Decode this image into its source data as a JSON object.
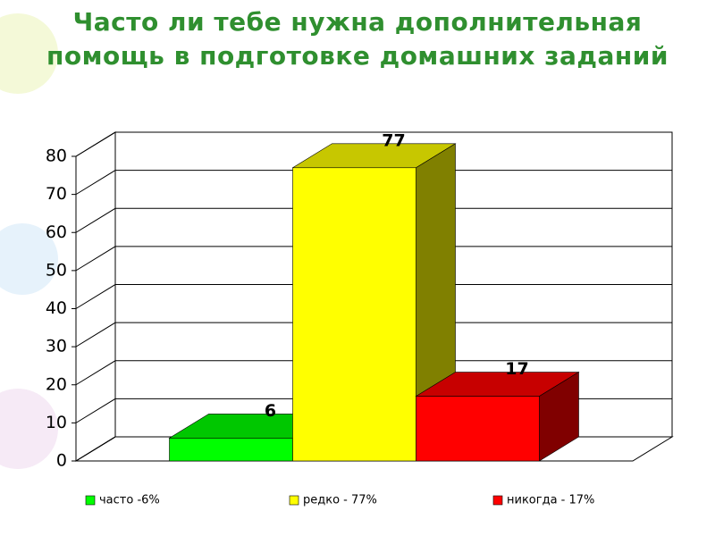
{
  "chart_data": {
    "type": "bar3d",
    "title": "Часто ли тебе нужна дополнительная помощь в подготовке домашних заданий",
    "categories": [
      null
    ],
    "series": [
      {
        "name": "часто -6%",
        "color": "#00ff00",
        "values": [
          6
        ]
      },
      {
        "name": "редко - 77%",
        "color": "#ffff00",
        "values": [
          77
        ]
      },
      {
        "name": "никогда - 17%",
        "color": "#ff0000",
        "values": [
          17
        ]
      }
    ],
    "ylim": [
      0,
      80
    ],
    "yticks": [
      0,
      10,
      20,
      30,
      40,
      50,
      60,
      70,
      80
    ],
    "grid": true,
    "legend": "bottom"
  }
}
